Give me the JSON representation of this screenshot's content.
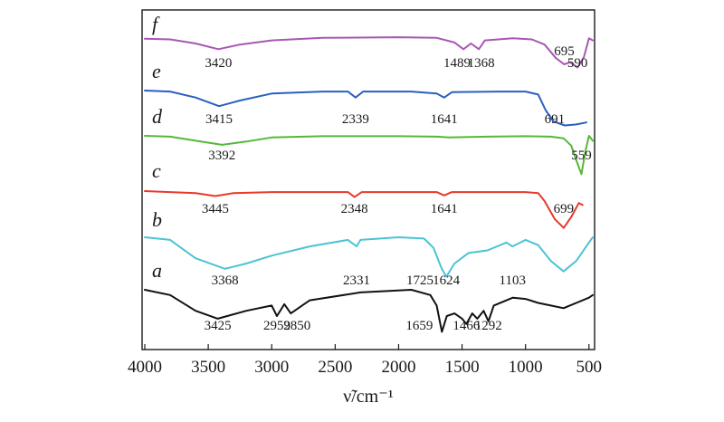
{
  "chart_data": {
    "type": "line",
    "title": "",
    "xlabel": "ν̃/cm⁻¹",
    "ylabel": "",
    "xlim": [
      4000,
      470
    ],
    "x_reversed": true,
    "grid": false,
    "legend": "none",
    "xticks": [
      4000,
      3500,
      3000,
      2500,
      2000,
      1500,
      1000,
      500
    ],
    "series": [
      {
        "name": "f",
        "color": "#a857b4",
        "points": [
          [
            4000,
            0.12
          ],
          [
            3800,
            0.15
          ],
          [
            3600,
            0.35
          ],
          [
            3420,
            0.62
          ],
          [
            3250,
            0.4
          ],
          [
            3000,
            0.2
          ],
          [
            2600,
            0.08
          ],
          [
            2000,
            0.05
          ],
          [
            1700,
            0.08
          ],
          [
            1560,
            0.3
          ],
          [
            1489,
            0.62
          ],
          [
            1430,
            0.35
          ],
          [
            1368,
            0.62
          ],
          [
            1320,
            0.2
          ],
          [
            1100,
            0.1
          ],
          [
            950,
            0.15
          ],
          [
            850,
            0.4
          ],
          [
            760,
            1.05
          ],
          [
            695,
            1.35
          ],
          [
            650,
            1.25
          ],
          [
            590,
            1.5
          ],
          [
            540,
            1.0
          ],
          [
            500,
            0.1
          ],
          [
            470,
            0.2
          ]
        ],
        "labels": [
          {
            "text": "3420",
            "x": 3420
          },
          {
            "text": "1489",
            "x": 1540
          },
          {
            "text": "1368",
            "x": 1350
          },
          {
            "text": "695",
            "x": 695,
            "above": true
          },
          {
            "text": "590",
            "x": 590
          }
        ]
      },
      {
        "name": "e",
        "color": "#2a5fc0",
        "points": [
          [
            4000,
            0.0
          ],
          [
            3800,
            0.05
          ],
          [
            3600,
            0.35
          ],
          [
            3415,
            0.78
          ],
          [
            3250,
            0.5
          ],
          [
            3000,
            0.15
          ],
          [
            2600,
            0.05
          ],
          [
            2400,
            0.05
          ],
          [
            2339,
            0.35
          ],
          [
            2280,
            0.05
          ],
          [
            1900,
            0.05
          ],
          [
            1700,
            0.15
          ],
          [
            1641,
            0.35
          ],
          [
            1580,
            0.08
          ],
          [
            1200,
            0.05
          ],
          [
            1000,
            0.05
          ],
          [
            900,
            0.2
          ],
          [
            840,
            1.0
          ],
          [
            780,
            1.55
          ],
          [
            691,
            1.75
          ],
          [
            600,
            1.7
          ],
          [
            520,
            1.6
          ]
        ],
        "labels": [
          {
            "text": "3415",
            "x": 3415
          },
          {
            "text": "2339",
            "x": 2339
          },
          {
            "text": "1641",
            "x": 1641
          },
          {
            "text": "691",
            "x": 770
          }
        ]
      },
      {
        "name": "d",
        "color": "#55b838",
        "points": [
          [
            4000,
            0.0
          ],
          [
            3800,
            0.05
          ],
          [
            3600,
            0.3
          ],
          [
            3392,
            0.55
          ],
          [
            3200,
            0.35
          ],
          [
            3000,
            0.1
          ],
          [
            2600,
            0.02
          ],
          [
            2000,
            0.02
          ],
          [
            1700,
            0.05
          ],
          [
            1600,
            0.1
          ],
          [
            1300,
            0.05
          ],
          [
            1000,
            0.02
          ],
          [
            800,
            0.05
          ],
          [
            700,
            0.15
          ],
          [
            640,
            0.6
          ],
          [
            600,
            1.5
          ],
          [
            559,
            2.35
          ],
          [
            530,
            1.0
          ],
          [
            500,
            0.0
          ],
          [
            470,
            0.3
          ]
        ],
        "labels": [
          {
            "text": "3392",
            "x": 3392
          },
          {
            "text": "559",
            "x": 559
          }
        ]
      },
      {
        "name": "c",
        "color": "#e8382b",
        "points": [
          [
            4000,
            0.0
          ],
          [
            3800,
            0.05
          ],
          [
            3600,
            0.1
          ],
          [
            3445,
            0.25
          ],
          [
            3300,
            0.1
          ],
          [
            3000,
            0.05
          ],
          [
            2400,
            0.05
          ],
          [
            2348,
            0.3
          ],
          [
            2290,
            0.05
          ],
          [
            1700,
            0.05
          ],
          [
            1641,
            0.22
          ],
          [
            1580,
            0.05
          ],
          [
            1000,
            0.05
          ],
          [
            900,
            0.1
          ],
          [
            850,
            0.5
          ],
          [
            770,
            1.4
          ],
          [
            699,
            1.85
          ],
          [
            640,
            1.3
          ],
          [
            580,
            0.6
          ],
          [
            550,
            0.7
          ]
        ],
        "labels": [
          {
            "text": "3445",
            "x": 3445
          },
          {
            "text": "2348",
            "x": 2348
          },
          {
            "text": "1641",
            "x": 1641
          },
          {
            "text": "699",
            "x": 699
          }
        ]
      },
      {
        "name": "b",
        "color": "#4cc3d4",
        "points": [
          [
            4000,
            0.0
          ],
          [
            3800,
            0.1
          ],
          [
            3600,
            0.8
          ],
          [
            3368,
            1.2
          ],
          [
            3200,
            1.0
          ],
          [
            3000,
            0.7
          ],
          [
            2700,
            0.35
          ],
          [
            2400,
            0.1
          ],
          [
            2331,
            0.35
          ],
          [
            2300,
            0.1
          ],
          [
            2000,
            0.0
          ],
          [
            1800,
            0.05
          ],
          [
            1725,
            0.4
          ],
          [
            1660,
            1.2
          ],
          [
            1624,
            1.5
          ],
          [
            1560,
            1.0
          ],
          [
            1450,
            0.6
          ],
          [
            1300,
            0.5
          ],
          [
            1150,
            0.2
          ],
          [
            1103,
            0.35
          ],
          [
            1000,
            0.1
          ],
          [
            900,
            0.3
          ],
          [
            800,
            0.9
          ],
          [
            700,
            1.3
          ],
          [
            600,
            0.9
          ],
          [
            500,
            0.2
          ],
          [
            470,
            0.0
          ]
        ],
        "labels": [
          {
            "text": "3368",
            "x": 3368
          },
          {
            "text": "2331",
            "x": 2331
          },
          {
            "text": "1725",
            "x": 1725,
            "left": true
          },
          {
            "text": "1624",
            "x": 1624
          },
          {
            "text": "1103",
            "x": 1103
          }
        ]
      },
      {
        "name": "a",
        "color": "#111111",
        "points": [
          [
            4000,
            0.0
          ],
          [
            3800,
            0.2
          ],
          [
            3600,
            0.8
          ],
          [
            3425,
            1.1
          ],
          [
            3200,
            0.8
          ],
          [
            3000,
            0.6
          ],
          [
            2959,
            1.0
          ],
          [
            2900,
            0.55
          ],
          [
            2850,
            0.9
          ],
          [
            2700,
            0.4
          ],
          [
            2300,
            0.1
          ],
          [
            1900,
            0.0
          ],
          [
            1750,
            0.2
          ],
          [
            1700,
            0.6
          ],
          [
            1659,
            1.6
          ],
          [
            1620,
            1.0
          ],
          [
            1560,
            0.9
          ],
          [
            1500,
            1.1
          ],
          [
            1466,
            1.3
          ],
          [
            1420,
            0.9
          ],
          [
            1380,
            1.1
          ],
          [
            1330,
            0.8
          ],
          [
            1292,
            1.2
          ],
          [
            1250,
            0.6
          ],
          [
            1100,
            0.3
          ],
          [
            1000,
            0.35
          ],
          [
            900,
            0.5
          ],
          [
            800,
            0.6
          ],
          [
            700,
            0.7
          ],
          [
            600,
            0.5
          ],
          [
            500,
            0.3
          ],
          [
            470,
            0.2
          ]
        ],
        "labels": [
          {
            "text": "3425",
            "x": 3425
          },
          {
            "text": "2959",
            "x": 2959
          },
          {
            "text": "2850",
            "x": 2800
          },
          {
            "text": "1659",
            "x": 1730,
            "left": true
          },
          {
            "text": "1466",
            "x": 1466
          },
          {
            "text": "1292",
            "x": 1292
          }
        ]
      }
    ]
  }
}
